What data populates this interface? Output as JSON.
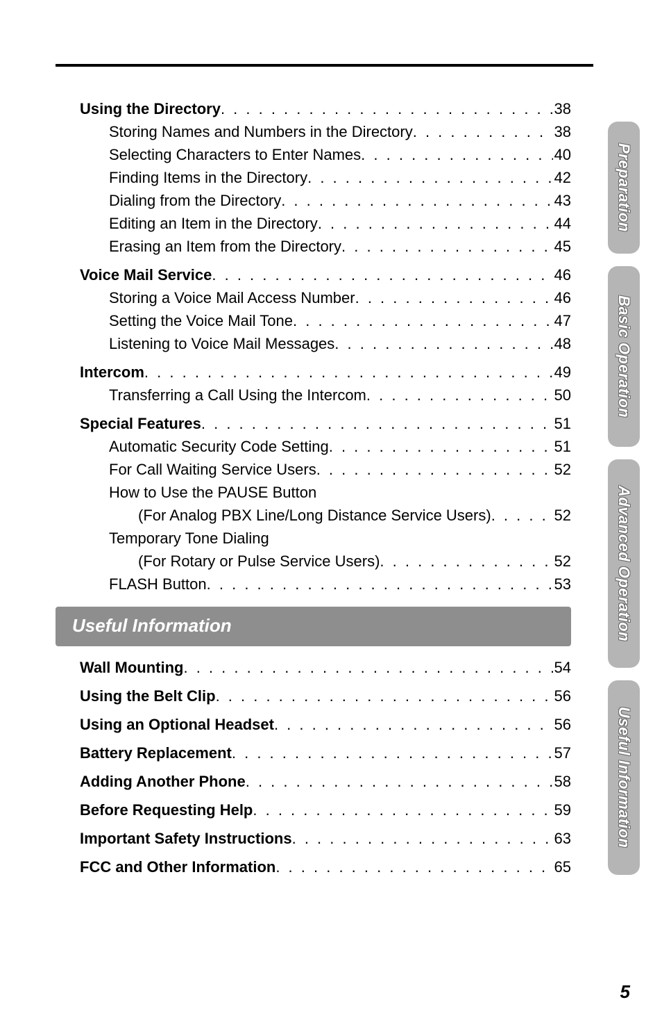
{
  "page_number": "5",
  "tabs": [
    {
      "label": "Preparation"
    },
    {
      "label": "Basic Operation"
    },
    {
      "label": "Advanced Operation"
    },
    {
      "label": "Useful Information"
    }
  ],
  "section_a": [
    {
      "label": "Using the Directory",
      "page": "38",
      "bold": true,
      "indent": 0
    },
    {
      "label": "Storing Names and Numbers in the Directory",
      "page": "38",
      "indent": 1
    },
    {
      "label": "Selecting Characters to Enter Names",
      "page": "40",
      "indent": 1
    },
    {
      "label": "Finding Items in the Directory",
      "page": "42",
      "indent": 1
    },
    {
      "label": "Dialing from the Directory",
      "page": "43",
      "indent": 1
    },
    {
      "label": "Editing an Item in the Directory ",
      "page": "44",
      "indent": 1
    },
    {
      "label": "Erasing an Item from the Directory",
      "page": "45",
      "indent": 1
    }
  ],
  "section_b": [
    {
      "label": "Voice Mail Service",
      "page": "46",
      "bold": true,
      "indent": 0
    },
    {
      "label": "Storing a Voice Mail Access Number ",
      "page": "46",
      "indent": 1
    },
    {
      "label": "Setting the Voice Mail Tone ",
      "page": "47",
      "indent": 1
    },
    {
      "label": "Listening to Voice Mail Messages",
      "page": "48",
      "indent": 1
    }
  ],
  "section_c": [
    {
      "label": "Intercom",
      "page": "49",
      "bold": true,
      "indent": 0
    },
    {
      "label": "Transferring a Call Using the Intercom",
      "page": "50",
      "indent": 1
    }
  ],
  "section_d_head": {
    "label": "Special Features",
    "page": "51"
  },
  "section_d": [
    {
      "label": "Automatic Security Code Setting",
      "page": "51",
      "indent": 1
    },
    {
      "label": "For Call Waiting Service Users",
      "page": "52",
      "indent": 1
    }
  ],
  "pause_line": "How to Use the PAUSE Button",
  "pause_sub": {
    "label": "(For Analog PBX Line/Long Distance Service Users)",
    "page": "52"
  },
  "temp_line": "Temporary Tone Dialing",
  "temp_sub": {
    "label": "(For Rotary or Pulse Service Users) ",
    "page": "52"
  },
  "flash": {
    "label": "FLASH Button",
    "page": "53"
  },
  "useful_header": "Useful Information",
  "useful": [
    {
      "label": "Wall Mounting",
      "page": "54"
    },
    {
      "label": "Using the Belt Clip",
      "page": "56"
    },
    {
      "label": "Using an Optional Headset",
      "page": "56"
    },
    {
      "label": "Battery Replacement",
      "page": "57"
    },
    {
      "label": "Adding Another Phone ",
      "page": "58"
    },
    {
      "label": "Before Requesting Help",
      "page": "59"
    },
    {
      "label": "Important Safety Instructions",
      "page": "63"
    },
    {
      "label": "FCC and Other Information",
      "page": "65"
    }
  ]
}
